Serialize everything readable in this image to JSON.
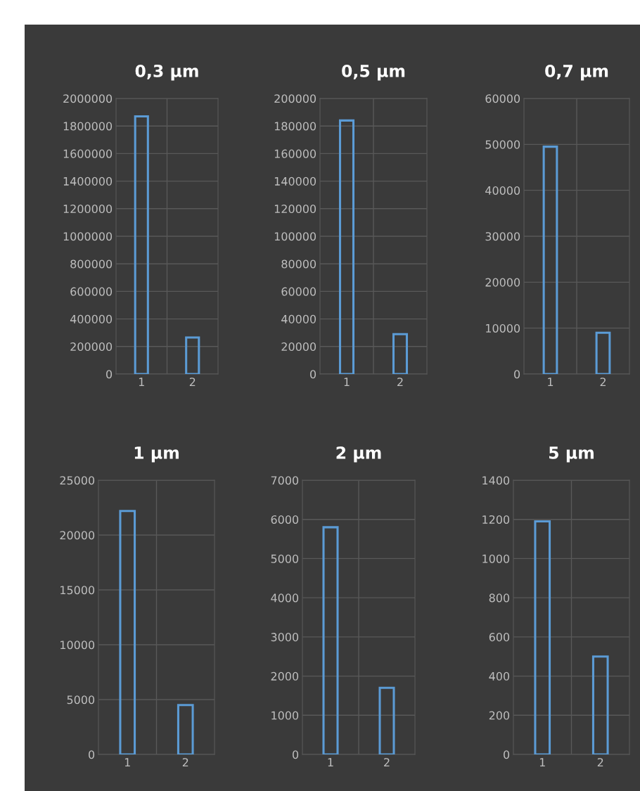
{
  "chart_data": [
    {
      "type": "bar",
      "title": "0,3 µm",
      "categories": [
        "1",
        "2"
      ],
      "values": [
        1870000,
        265000
      ],
      "color": "#5b9bd5",
      "ylim": [
        0,
        2000000
      ],
      "yticks": [
        0,
        200000,
        400000,
        600000,
        800000,
        1000000,
        1200000,
        1400000,
        1600000,
        1800000,
        2000000
      ],
      "grid": true
    },
    {
      "type": "bar",
      "title": "0,5 µm",
      "categories": [
        "1",
        "2"
      ],
      "values": [
        184000,
        29000
      ],
      "color": "#5b9bd5",
      "ylim": [
        0,
        200000
      ],
      "yticks": [
        0,
        20000,
        40000,
        60000,
        80000,
        100000,
        120000,
        140000,
        160000,
        180000,
        200000
      ],
      "grid": true
    },
    {
      "type": "bar",
      "title": "0,7 µm",
      "categories": [
        "1",
        "2"
      ],
      "values": [
        49500,
        9000
      ],
      "color": "#5b9bd5",
      "ylim": [
        0,
        60000
      ],
      "yticks": [
        0,
        10000,
        20000,
        30000,
        40000,
        50000,
        60000
      ],
      "grid": true
    },
    {
      "type": "bar",
      "title": "1 µm",
      "categories": [
        "1",
        "2"
      ],
      "values": [
        22200,
        4500
      ],
      "color": "#5b9bd5",
      "ylim": [
        0,
        25000
      ],
      "yticks": [
        0,
        5000,
        10000,
        15000,
        20000,
        25000
      ],
      "grid": true
    },
    {
      "type": "bar",
      "title": "2 µm",
      "categories": [
        "1",
        "2"
      ],
      "values": [
        5800,
        1700
      ],
      "color": "#5b9bd5",
      "ylim": [
        0,
        7000
      ],
      "yticks": [
        0,
        1000,
        2000,
        3000,
        4000,
        5000,
        6000,
        7000
      ],
      "grid": true
    },
    {
      "type": "bar",
      "title": "5 µm",
      "categories": [
        "1",
        "2"
      ],
      "values": [
        1190,
        500
      ],
      "color": "#5b9bd5",
      "ylim": [
        0,
        1400
      ],
      "yticks": [
        0,
        200,
        400,
        600,
        800,
        1000,
        1200,
        1400
      ],
      "grid": true
    }
  ]
}
